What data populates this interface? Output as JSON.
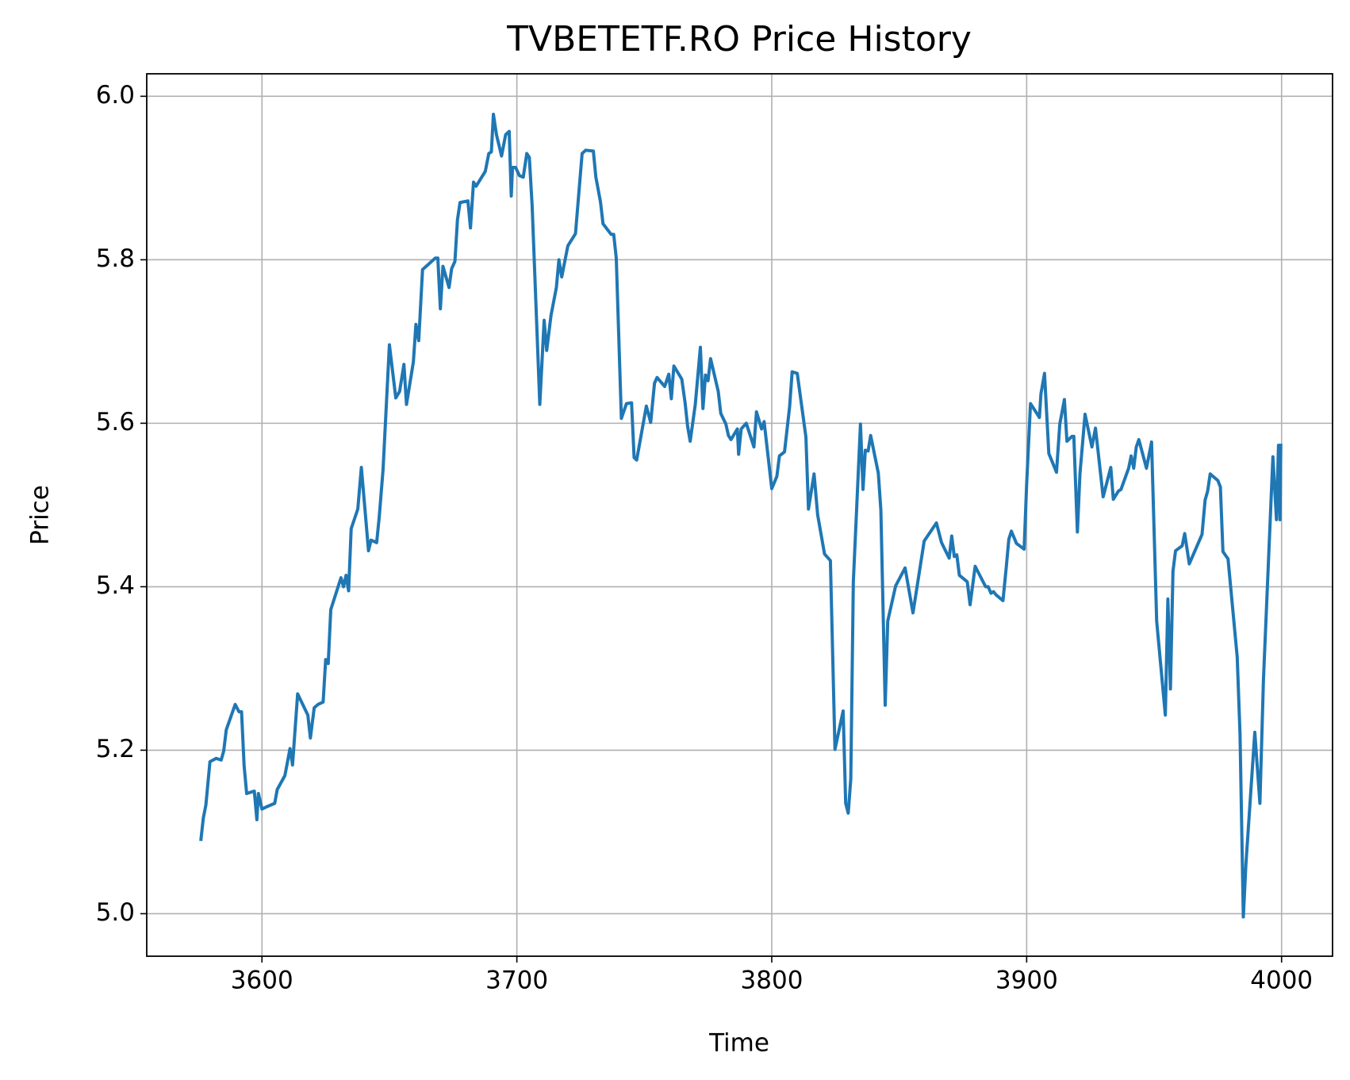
{
  "chart_data": {
    "type": "line",
    "title": "TVBETETF.RO Price History",
    "x_label": "Time",
    "y_label": "Price",
    "x": [
      3576,
      3577,
      3578,
      3579.6,
      3582,
      3584,
      3585,
      3586,
      3589.5,
      3591,
      3592,
      3593,
      3594,
      3596,
      3597,
      3598,
      3598.6,
      3600,
      3602,
      3605,
      3606,
      3609,
      3611,
      3612,
      3614,
      3618,
      3619,
      3620.5,
      3622,
      3624,
      3625,
      3626,
      3627,
      3631,
      3632,
      3633,
      3634,
      3635,
      3637.6,
      3639,
      3641.8,
      3642.8,
      3645,
      3646,
      3647.5,
      3650,
      3652.5,
      3654,
      3655.7,
      3656.7,
      3659.4,
      3660.4,
      3661.5,
      3663,
      3668,
      3669,
      3670,
      3671,
      3673.4,
      3674.4,
      3675.7,
      3676.7,
      3677.7,
      3680.8,
      3681.8,
      3683,
      3684,
      3687.6,
      3689,
      3690,
      3690.8,
      3692,
      3694,
      3695.6,
      3697,
      3697.8,
      3698.3,
      3699.5,
      3701,
      3702.5,
      3703.9,
      3704.9,
      3706,
      3709,
      3710.7,
      3711.7,
      3713.4,
      3715.5,
      3716.5,
      3717.6,
      3720,
      3723,
      3725.6,
      3727,
      3730,
      3731,
      3732.8,
      3733.8,
      3737,
      3738,
      3739,
      3741,
      3743,
      3745,
      3746,
      3747,
      3750.8,
      3752.5,
      3754,
      3755,
      3758,
      3759.6,
      3760.6,
      3761.6,
      3764.7,
      3766,
      3767,
      3768,
      3770,
      3772,
      3773,
      3774,
      3775,
      3776,
      3779,
      3780,
      3782,
      3783,
      3784,
      3786.5,
      3787,
      3788,
      3790,
      3793,
      3794,
      3796,
      3797,
      3800,
      3802,
      3803,
      3805,
      3807,
      3808,
      3810,
      3813.4,
      3814.4,
      3816.6,
      3818,
      3820.7,
      3823,
      3824.8,
      3828,
      3829,
      3830,
      3831,
      3832,
      3834.8,
      3835.8,
      3836.7,
      3837.8,
      3838.8,
      3841.8,
      3842.8,
      3844.5,
      3845.5,
      3848.6,
      3852.3,
      3855.4,
      3859.8,
      3864.6,
      3866.6,
      3869.6,
      3870.6,
      3871.6,
      3872.6,
      3873.6,
      3876.7,
      3877.8,
      3879.8,
      3883.9,
      3884.9,
      3886,
      3887,
      3888,
      3890.7,
      3892,
      3893,
      3894,
      3896,
      3899,
      3900,
      3901.5,
      3904,
      3905,
      3905.6,
      3907,
      3908.7,
      3911.7,
      3913,
      3914.8,
      3915.8,
      3917.8,
      3918.5,
      3919.9,
      3920.9,
      3922.9,
      3925.6,
      3927,
      3930,
      3933,
      3934,
      3936,
      3937,
      3940,
      3941,
      3942,
      3943,
      3944,
      3947,
      3949,
      3951,
      3954.4,
      3955.4,
      3956.4,
      3957.4,
      3958.4,
      3961,
      3962,
      3963.8,
      3968.8,
      3970,
      3971,
      3972,
      3975,
      3976,
      3977,
      3979,
      3982.6,
      3983.7,
      3985,
      3986,
      3989.5,
      3991.5,
      3992.9,
      3996.6,
      3998,
      3998.8,
      3999.4,
      3999.7
    ],
    "series": [
      {
        "name": "Price",
        "color": "#1f77b4",
        "values": [
          5.089,
          5.117,
          5.133,
          5.186,
          5.19,
          5.188,
          5.199,
          5.225,
          5.256,
          5.247,
          5.247,
          5.181,
          5.147,
          5.149,
          5.15,
          5.115,
          5.147,
          5.128,
          5.131,
          5.135,
          5.152,
          5.169,
          5.202,
          5.182,
          5.269,
          5.243,
          5.215,
          5.252,
          5.256,
          5.259,
          5.311,
          5.306,
          5.372,
          5.411,
          5.4,
          5.414,
          5.395,
          5.471,
          5.495,
          5.546,
          5.444,
          5.457,
          5.454,
          5.485,
          5.543,
          5.696,
          5.631,
          5.639,
          5.672,
          5.623,
          5.675,
          5.721,
          5.701,
          5.788,
          5.802,
          5.802,
          5.74,
          5.792,
          5.766,
          5.789,
          5.798,
          5.849,
          5.87,
          5.872,
          5.839,
          5.895,
          5.89,
          5.908,
          5.93,
          5.932,
          5.978,
          5.953,
          5.927,
          5.953,
          5.957,
          5.878,
          5.913,
          5.913,
          5.903,
          5.901,
          5.93,
          5.925,
          5.866,
          5.623,
          5.726,
          5.689,
          5.732,
          5.766,
          5.8,
          5.779,
          5.817,
          5.832,
          5.93,
          5.934,
          5.933,
          5.901,
          5.871,
          5.844,
          5.831,
          5.831,
          5.802,
          5.606,
          5.624,
          5.625,
          5.558,
          5.555,
          5.621,
          5.601,
          5.649,
          5.656,
          5.645,
          5.66,
          5.63,
          5.67,
          5.654,
          5.625,
          5.596,
          5.578,
          5.623,
          5.693,
          5.618,
          5.659,
          5.652,
          5.679,
          5.639,
          5.612,
          5.599,
          5.585,
          5.58,
          5.593,
          5.562,
          5.593,
          5.6,
          5.571,
          5.614,
          5.593,
          5.602,
          5.52,
          5.535,
          5.56,
          5.565,
          5.62,
          5.663,
          5.661,
          5.583,
          5.495,
          5.538,
          5.488,
          5.44,
          5.432,
          5.201,
          5.248,
          5.135,
          5.123,
          5.165,
          5.406,
          5.599,
          5.519,
          5.567,
          5.566,
          5.585,
          5.539,
          5.494,
          5.255,
          5.358,
          5.401,
          5.423,
          5.368,
          5.456,
          5.478,
          5.454,
          5.435,
          5.462,
          5.437,
          5.439,
          5.414,
          5.406,
          5.378,
          5.425,
          5.4,
          5.4,
          5.392,
          5.394,
          5.39,
          5.383,
          5.424,
          5.458,
          5.468,
          5.453,
          5.446,
          5.526,
          5.624,
          5.612,
          5.607,
          5.636,
          5.661,
          5.563,
          5.54,
          5.599,
          5.629,
          5.578,
          5.584,
          5.584,
          5.467,
          5.538,
          5.611,
          5.571,
          5.594,
          5.51,
          5.546,
          5.507,
          5.517,
          5.519,
          5.545,
          5.56,
          5.545,
          5.571,
          5.58,
          5.545,
          5.577,
          5.358,
          5.243,
          5.385,
          5.275,
          5.419,
          5.444,
          5.45,
          5.465,
          5.428,
          5.464,
          5.506,
          5.517,
          5.538,
          5.53,
          5.522,
          5.443,
          5.434,
          5.314,
          5.22,
          4.996,
          5.06,
          5.222,
          5.135,
          5.287,
          5.559,
          5.482,
          5.573,
          5.482,
          5.575
        ]
      }
    ],
    "xlim": [
      3554.8,
      4020
    ],
    "ylim": [
      4.948,
      6.0275
    ],
    "xticks": [
      3600,
      3700,
      3800,
      3900,
      4000
    ],
    "yticks": [
      {
        "value": 5,
        "label": "5.0"
      },
      5.2,
      5.4,
      5.6,
      5.8,
      {
        "value": 6,
        "label": "6.0"
      }
    ],
    "grid": true
  }
}
